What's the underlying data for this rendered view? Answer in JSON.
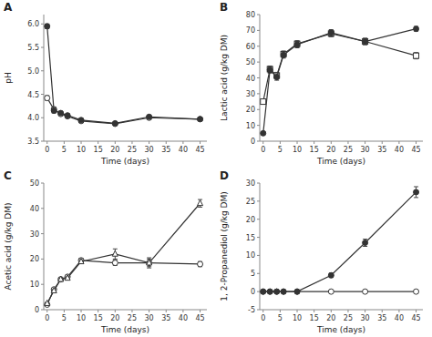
{
  "chart_data": [
    {
      "type": "line",
      "annotations": [
        "A"
      ],
      "xlabel": "Time (days)",
      "ylabel": "pH",
      "x": [
        0,
        2,
        4,
        6,
        10,
        20,
        30,
        45
      ],
      "xlim": [
        -1,
        47
      ],
      "xticks": [
        0,
        5,
        10,
        15,
        20,
        25,
        30,
        35,
        40,
        45
      ],
      "ylim": [
        3.5,
        6.2
      ],
      "yticks": [
        3.5,
        {
          "value": 4,
          "label": "4.0"
        },
        4.5,
        {
          "value": 5,
          "label": "5.0"
        },
        5.5,
        {
          "value": 6,
          "label": "6.0"
        }
      ],
      "grid": false,
      "series": [
        {
          "color": "#333333",
          "marker": "circle",
          "values": [
            5.95,
            4.15,
            4.1,
            4.05,
            3.95,
            3.88,
            4.02,
            3.97
          ],
          "errors": [
            0.05,
            0.05,
            0.03,
            0.03,
            0.03,
            0.03,
            0.03,
            0.03
          ]
        },
        {
          "color": "#333333",
          "marker": "open-circle",
          "values": [
            4.42,
            4.18,
            4.08,
            4.03,
            3.93,
            3.87,
            4.0,
            3.97
          ],
          "errors": [
            0.05,
            0.05,
            0.03,
            0.03,
            0.03,
            0.03,
            0.03,
            0.03
          ]
        }
      ]
    },
    {
      "type": "line",
      "annotations": [
        "B"
      ],
      "xlabel": "Time (days)",
      "ylabel": "Lactic acid (g/kg DM)",
      "x": [
        0,
        2,
        4,
        6,
        10,
        20,
        30,
        45
      ],
      "xlim": [
        -1,
        47
      ],
      "xticks": [
        0,
        5,
        10,
        15,
        20,
        25,
        30,
        35,
        40,
        45
      ],
      "ylim": [
        0,
        80
      ],
      "yticks": [
        0,
        10,
        20,
        30,
        40,
        50,
        60,
        70,
        80
      ],
      "grid": false,
      "series": [
        {
          "color": "#333333",
          "marker": "circle",
          "values": [
            5.0,
            45.0,
            40.5,
            54.5,
            61.0,
            68.5,
            63.0,
            71.0
          ],
          "errors": [
            1.0,
            2.0,
            2.0,
            2.0,
            2.0,
            2.0,
            2.0,
            1.5
          ]
        },
        {
          "color": "#333333",
          "marker": "open-square",
          "values": [
            25.0,
            45.5,
            41.5,
            55.0,
            61.5,
            68.0,
            63.0,
            54.0
          ],
          "errors": [
            1.0,
            2.0,
            2.0,
            2.0,
            2.0,
            2.0,
            2.0,
            2.0
          ]
        }
      ]
    },
    {
      "type": "line",
      "annotations": [
        "C"
      ],
      "xlabel": "Time (days)",
      "ylabel": "Acetic acid (g/kg DM)",
      "x": [
        0,
        2,
        4,
        6,
        10,
        20,
        30,
        45
      ],
      "xlim": [
        -1,
        47
      ],
      "xticks": [
        0,
        5,
        10,
        15,
        20,
        25,
        30,
        35,
        40,
        45
      ],
      "ylim": [
        0,
        50
      ],
      "yticks": [
        0,
        10,
        20,
        30,
        40,
        50
      ],
      "grid": false,
      "series": [
        {
          "color": "#333333",
          "marker": "open-triangle",
          "values": [
            2.5,
            7.5,
            12.0,
            12.5,
            19.0,
            22.0,
            18.5,
            42.0
          ],
          "errors": [
            0.3,
            0.5,
            0.5,
            0.5,
            0.8,
            2.0,
            1.5,
            1.5
          ]
        },
        {
          "color": "#333333",
          "marker": "open-circle",
          "values": [
            2.0,
            8.0,
            12.0,
            13.0,
            19.5,
            18.5,
            18.5,
            18.0
          ],
          "errors": [
            0.3,
            0.5,
            0.5,
            0.5,
            0.8,
            1.0,
            2.0,
            1.0
          ]
        }
      ]
    },
    {
      "type": "line",
      "annotations": [
        "D"
      ],
      "xlabel": "Time (days)",
      "ylabel": "1, 2-Propanediol (g/kg DM)",
      "x": [
        0,
        2,
        4,
        6,
        10,
        20,
        30,
        45
      ],
      "xlim": [
        -1,
        47
      ],
      "xticks": [
        0,
        5,
        10,
        15,
        20,
        25,
        30,
        35,
        40,
        45
      ],
      "ylim": [
        -5,
        30
      ],
      "yticks": [
        -5,
        0,
        5,
        10,
        15,
        20,
        25,
        30
      ],
      "grid": false,
      "series": [
        {
          "color": "#333333",
          "marker": "circle",
          "values": [
            0.0,
            0.0,
            0.0,
            0.0,
            0.0,
            4.5,
            13.5,
            27.5
          ],
          "errors": [
            0.02,
            0.02,
            0.02,
            0.02,
            0.05,
            0.6,
            1.0,
            1.5
          ]
        },
        {
          "color": "#333333",
          "marker": "open-circle",
          "values": [
            0.0,
            0.0,
            0.0,
            0.0,
            0.0,
            0.0,
            0.0,
            0.0
          ],
          "errors": [
            0.02,
            0.02,
            0.02,
            0.02,
            0.02,
            0.02,
            0.02,
            0.02
          ]
        }
      ]
    }
  ]
}
